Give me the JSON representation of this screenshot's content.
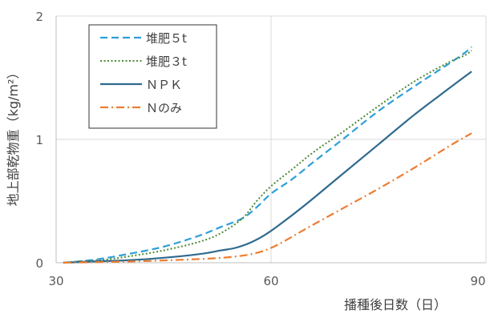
{
  "chart_data": {
    "type": "line",
    "xlabel": "播種後日数（日）",
    "ylabel": "地上部乾物重（kg/m²）",
    "xlim": [
      30,
      90
    ],
    "ylim": [
      0,
      2
    ],
    "xticks": [
      "30",
      "60",
      "90"
    ],
    "yticks": [
      "0",
      "1",
      "2"
    ],
    "grid": true,
    "legend_position": "top-left",
    "series": [
      {
        "name": "堆肥５t",
        "color": "#2E9FD8",
        "dash": "dashed",
        "points": [
          [
            31,
            0
          ],
          [
            33,
            0.01
          ],
          [
            36,
            0.03
          ],
          [
            40,
            0.07
          ],
          [
            45,
            0.13
          ],
          [
            50,
            0.22
          ],
          [
            53,
            0.29
          ],
          [
            56,
            0.36
          ],
          [
            58,
            0.45
          ],
          [
            60,
            0.56
          ],
          [
            63,
            0.68
          ],
          [
            66,
            0.82
          ],
          [
            70,
            1.0
          ],
          [
            75,
            1.23
          ],
          [
            80,
            1.43
          ],
          [
            85,
            1.62
          ],
          [
            87,
            1.7
          ],
          [
            88,
            1.75
          ]
        ]
      },
      {
        "name": "堆肥３t",
        "color": "#4E8A34",
        "dash": "dotted",
        "points": [
          [
            31,
            0
          ],
          [
            33,
            0.01
          ],
          [
            36,
            0.02
          ],
          [
            40,
            0.05
          ],
          [
            45,
            0.1
          ],
          [
            50,
            0.17
          ],
          [
            53,
            0.24
          ],
          [
            56,
            0.36
          ],
          [
            58,
            0.5
          ],
          [
            60,
            0.62
          ],
          [
            63,
            0.76
          ],
          [
            66,
            0.9
          ],
          [
            70,
            1.06
          ],
          [
            75,
            1.27
          ],
          [
            80,
            1.47
          ],
          [
            85,
            1.63
          ],
          [
            87,
            1.68
          ],
          [
            88,
            1.72
          ]
        ]
      },
      {
        "name": "ＮＰＫ",
        "color": "#2F6A8E",
        "dash": "solid",
        "points": [
          [
            31,
            0
          ],
          [
            35,
            0.01
          ],
          [
            40,
            0.02
          ],
          [
            45,
            0.04
          ],
          [
            50,
            0.07
          ],
          [
            53,
            0.1
          ],
          [
            55,
            0.12
          ],
          [
            57,
            0.16
          ],
          [
            59,
            0.22
          ],
          [
            61,
            0.3
          ],
          [
            65,
            0.48
          ],
          [
            70,
            0.72
          ],
          [
            75,
            0.96
          ],
          [
            80,
            1.2
          ],
          [
            85,
            1.42
          ],
          [
            88,
            1.55
          ]
        ]
      },
      {
        "name": "Ｎのみ",
        "color": "#ED7D31",
        "dash": "dashdot",
        "points": [
          [
            31,
            0
          ],
          [
            40,
            0.01
          ],
          [
            50,
            0.03
          ],
          [
            55,
            0.05
          ],
          [
            58,
            0.08
          ],
          [
            60,
            0.12
          ],
          [
            62,
            0.18
          ],
          [
            65,
            0.28
          ],
          [
            70,
            0.44
          ],
          [
            75,
            0.6
          ],
          [
            80,
            0.77
          ],
          [
            85,
            0.95
          ],
          [
            88,
            1.05
          ]
        ]
      }
    ]
  }
}
